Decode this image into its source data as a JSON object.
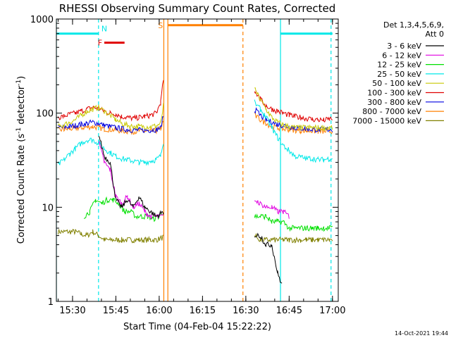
{
  "chart_data": {
    "type": "line",
    "title": "RHESSI Observing Summary Count Rates, Corrected",
    "xlabel": "Start Time (04-Feb-04 15:22:22)",
    "ylabel_main": "Corrected Count Rate (s",
    "ylabel_sup1": "-1",
    "ylabel_mid": " detector",
    "ylabel_sup2": "-1",
    "ylabel_end": ")",
    "y_scale": "log",
    "ylim": [
      1,
      1000
    ],
    "xlim_minutes": [
      2.4,
      100
    ],
    "x_ticks": [
      {
        "minute": 8,
        "label": "15:30"
      },
      {
        "minute": 23,
        "label": "15:45"
      },
      {
        "minute": 38,
        "label": "16:00"
      },
      {
        "minute": 53,
        "label": "16:15"
      },
      {
        "minute": 68,
        "label": "16:30"
      },
      {
        "minute": 83,
        "label": "16:45"
      },
      {
        "minute": 98,
        "label": "17:00"
      }
    ],
    "y_ticks": [
      {
        "value": 1,
        "label": "1"
      },
      {
        "value": 10,
        "label": "10"
      },
      {
        "value": 100,
        "label": "100"
      },
      {
        "value": 1000,
        "label": "1000"
      }
    ],
    "legend": {
      "header1": "Det 1,3,4,5,6,9,",
      "header2": "Att 0",
      "placement": "right"
    },
    "series": [
      {
        "name": "3 - 6 keV",
        "color": "#000000",
        "x": [
          2.4,
          15,
          17,
          19,
          21,
          23,
          25,
          27,
          29,
          31,
          33,
          35,
          37,
          39.5,
          40.5
        ],
        "values": [
          null,
          null,
          60,
          35,
          30,
          12,
          10,
          12,
          10,
          13,
          10,
          9,
          8,
          9,
          null
        ]
      },
      {
        "name": "6 - 12 keV",
        "color": "#e000e0",
        "x": [
          2.4,
          15,
          17,
          19,
          21,
          23,
          25,
          27,
          29,
          31,
          33,
          35,
          37,
          39.5,
          40.5
        ],
        "values": [
          null,
          null,
          50,
          30,
          25,
          13,
          11,
          13,
          10,
          11,
          9,
          8,
          8,
          8,
          null
        ]
      },
      {
        "name": "12 - 25 keV",
        "color": "#00e000",
        "x": [
          2.4,
          12,
          14,
          16,
          18,
          20,
          22,
          24,
          26,
          28,
          30,
          32,
          34,
          36,
          38,
          39.5,
          40.5
        ],
        "values": [
          null,
          8,
          9,
          12,
          11,
          12,
          12,
          11,
          9,
          9,
          8,
          8,
          8,
          7.5,
          8,
          9,
          null
        ]
      },
      {
        "name": "25 - 50 keV",
        "color": "#00e8e8",
        "x": [
          2.4,
          3,
          5,
          7,
          9,
          11,
          13,
          15,
          17,
          19,
          21,
          23,
          25,
          27,
          29,
          31,
          33,
          35,
          37,
          38.5,
          39.5,
          40.5
        ],
        "values": [
          null,
          28,
          32,
          37,
          42,
          48,
          52,
          52,
          48,
          42,
          38,
          35,
          33,
          32,
          31,
          30,
          30,
          31,
          32,
          35,
          50,
          null
        ]
      },
      {
        "name": "50 - 100 keV",
        "color": "#c8c800",
        "x": [
          2.4,
          3,
          5,
          7,
          9,
          11,
          13,
          15,
          17,
          19,
          21,
          23,
          25,
          27,
          29,
          31,
          33,
          35,
          37,
          38.5,
          39.5,
          40.5
        ],
        "values": [
          null,
          72,
          75,
          80,
          85,
          95,
          105,
          110,
          115,
          105,
          95,
          85,
          78,
          74,
          72,
          72,
          72,
          72,
          73,
          78,
          120,
          null
        ]
      },
      {
        "name": "100 - 300 keV",
        "color": "#e00000",
        "x": [
          2.4,
          3,
          5,
          7,
          9,
          11,
          13,
          15,
          17,
          19,
          21,
          23,
          25,
          27,
          29,
          31,
          33,
          35,
          37,
          38.5,
          39.5,
          40.5
        ],
        "values": [
          null,
          90,
          93,
          97,
          100,
          105,
          110,
          115,
          112,
          105,
          100,
          98,
          92,
          90,
          88,
          90,
          92,
          95,
          100,
          130,
          230,
          null
        ]
      },
      {
        "name": "300 - 800 keV",
        "color": "#0000e0",
        "x": [
          2.4,
          3,
          5,
          7,
          9,
          11,
          13,
          15,
          17,
          19,
          21,
          23,
          25,
          27,
          29,
          31,
          33,
          35,
          37,
          38.5,
          39.5,
          40.5
        ],
        "values": [
          null,
          70,
          71,
          72,
          74,
          76,
          78,
          80,
          78,
          74,
          72,
          70,
          68,
          67,
          66,
          66,
          66,
          66,
          67,
          70,
          95,
          null
        ]
      },
      {
        "name": "800 - 7000 keV",
        "color": "#ff8000",
        "x": [
          2.4,
          3,
          5,
          7,
          9,
          11,
          13,
          15,
          17,
          19,
          21,
          23,
          25,
          27,
          29,
          31,
          33,
          35,
          37,
          38.5,
          39.5,
          40.5
        ],
        "values": [
          null,
          66,
          67,
          68,
          69,
          70,
          71,
          72,
          70,
          68,
          67,
          66,
          65,
          64,
          64,
          64,
          64,
          64,
          65,
          68,
          85,
          null
        ]
      },
      {
        "name": "7000 - 15000 keV",
        "color": "#808000",
        "x": [
          2.4,
          3,
          5,
          7,
          9,
          11,
          13,
          15,
          17,
          19,
          21,
          23,
          25,
          27,
          29,
          31,
          33,
          35,
          37,
          39.5,
          40.5
        ],
        "values": [
          null,
          5.5,
          5.5,
          5.5,
          5.5,
          5.2,
          5.0,
          5.5,
          5.0,
          4.5,
          4.5,
          4.5,
          4.5,
          4.5,
          4.5,
          4.5,
          4.5,
          4.5,
          4.5,
          4.8,
          null
        ]
      }
    ],
    "series_after_gap": [
      {
        "name": "3 - 6 keV",
        "x": [
          71,
          73,
          75,
          77,
          79,
          80.5
        ],
        "values": [
          5,
          5,
          4,
          4,
          2,
          1.5
        ]
      },
      {
        "name": "6 - 12 keV",
        "x": [
          71,
          73,
          75,
          77,
          79,
          81,
          83,
          84
        ],
        "values": [
          12,
          11,
          10,
          10,
          9,
          9,
          8,
          null
        ]
      },
      {
        "name": "12 - 25 keV",
        "x": [
          71,
          73,
          75,
          77,
          79,
          81,
          83,
          85,
          87,
          89,
          91,
          93,
          95,
          97,
          98
        ],
        "values": [
          8,
          8,
          8,
          7,
          7,
          7,
          6,
          6,
          6,
          6,
          6,
          6,
          6,
          6,
          6
        ]
      },
      {
        "name": "25 - 50 keV",
        "x": [
          71,
          73,
          75,
          77,
          79,
          81,
          83,
          85,
          87,
          89,
          91,
          93,
          95,
          97,
          98
        ],
        "values": [
          130,
          110,
          90,
          70,
          55,
          45,
          40,
          35,
          34,
          33,
          33,
          32,
          32,
          33,
          33
        ]
      },
      {
        "name": "50 - 100 keV",
        "x": [
          71,
          73,
          75,
          77,
          79,
          81,
          83,
          85,
          87,
          89,
          91,
          93,
          95,
          97,
          98
        ],
        "values": [
          180,
          140,
          110,
          90,
          80,
          75,
          72,
          70,
          70,
          70,
          70,
          70,
          70,
          70,
          70
        ]
      },
      {
        "name": "100 - 300 keV",
        "x": [
          71,
          73,
          75,
          77,
          79,
          81,
          83,
          85,
          87,
          89,
          91,
          93,
          95,
          97,
          98
        ],
        "values": [
          175,
          140,
          120,
          110,
          105,
          100,
          95,
          92,
          90,
          88,
          86,
          85,
          84,
          86,
          88
        ]
      },
      {
        "name": "300 - 800 keV",
        "x": [
          71,
          73,
          75,
          77,
          79,
          81,
          83,
          85,
          87,
          89,
          91,
          93,
          95,
          97,
          98
        ],
        "values": [
          110,
          95,
          85,
          80,
          76,
          74,
          72,
          70,
          69,
          68,
          67,
          67,
          67,
          67,
          67
        ]
      },
      {
        "name": "800 - 7000 keV",
        "x": [
          71,
          73,
          75,
          77,
          79,
          81,
          83,
          85,
          87,
          89,
          91,
          93,
          95,
          97,
          98
        ],
        "values": [
          95,
          85,
          78,
          72,
          70,
          68,
          67,
          66,
          65,
          65,
          65,
          64,
          64,
          64,
          64
        ]
      },
      {
        "name": "7000 - 15000 keV",
        "x": [
          71,
          73,
          75,
          77,
          79,
          81,
          83,
          85,
          87,
          89,
          91,
          93,
          95,
          97,
          98
        ],
        "values": [
          5,
          4.5,
          4.5,
          4.5,
          4.5,
          4.5,
          4.5,
          4.5,
          4.5,
          4.5,
          4.5,
          4.5,
          4.5,
          4.5,
          4.5
        ]
      }
    ],
    "flag_bars": [
      {
        "label": "N",
        "color": "#00e8e8",
        "x_start": 2.4,
        "x_end": 17,
        "y_value": 700
      },
      {
        "label": "N",
        "color": "#00e8e8",
        "x_start": 80,
        "x_end": 98,
        "y_value": 700
      },
      {
        "label": "F",
        "color": "#e00000",
        "x_start": 19,
        "x_end": 26,
        "y_value": 560
      },
      {
        "label": "S",
        "color": "#ff8000",
        "x_start": 41,
        "x_end": 67,
        "y_value": 860
      }
    ],
    "flag_labels_text": [
      "N",
      "F",
      "S"
    ],
    "vertical_markers": [
      {
        "minute": 2.4,
        "color": "#00e8e8",
        "style": "solid"
      },
      {
        "minute": 17,
        "color": "#00e8e8",
        "style": "dashed"
      },
      {
        "minute": 39.6,
        "color": "#ff8000",
        "style": "solid"
      },
      {
        "minute": 41,
        "color": "#ff8000",
        "style": "solid"
      },
      {
        "minute": 67,
        "color": "#ff8000",
        "style": "dashed"
      },
      {
        "minute": 80,
        "color": "#00e8e8",
        "style": "solid"
      },
      {
        "minute": 97.5,
        "color": "#00e8e8",
        "style": "dashed"
      }
    ],
    "timestamp": "14-Oct-2021 19:44"
  }
}
